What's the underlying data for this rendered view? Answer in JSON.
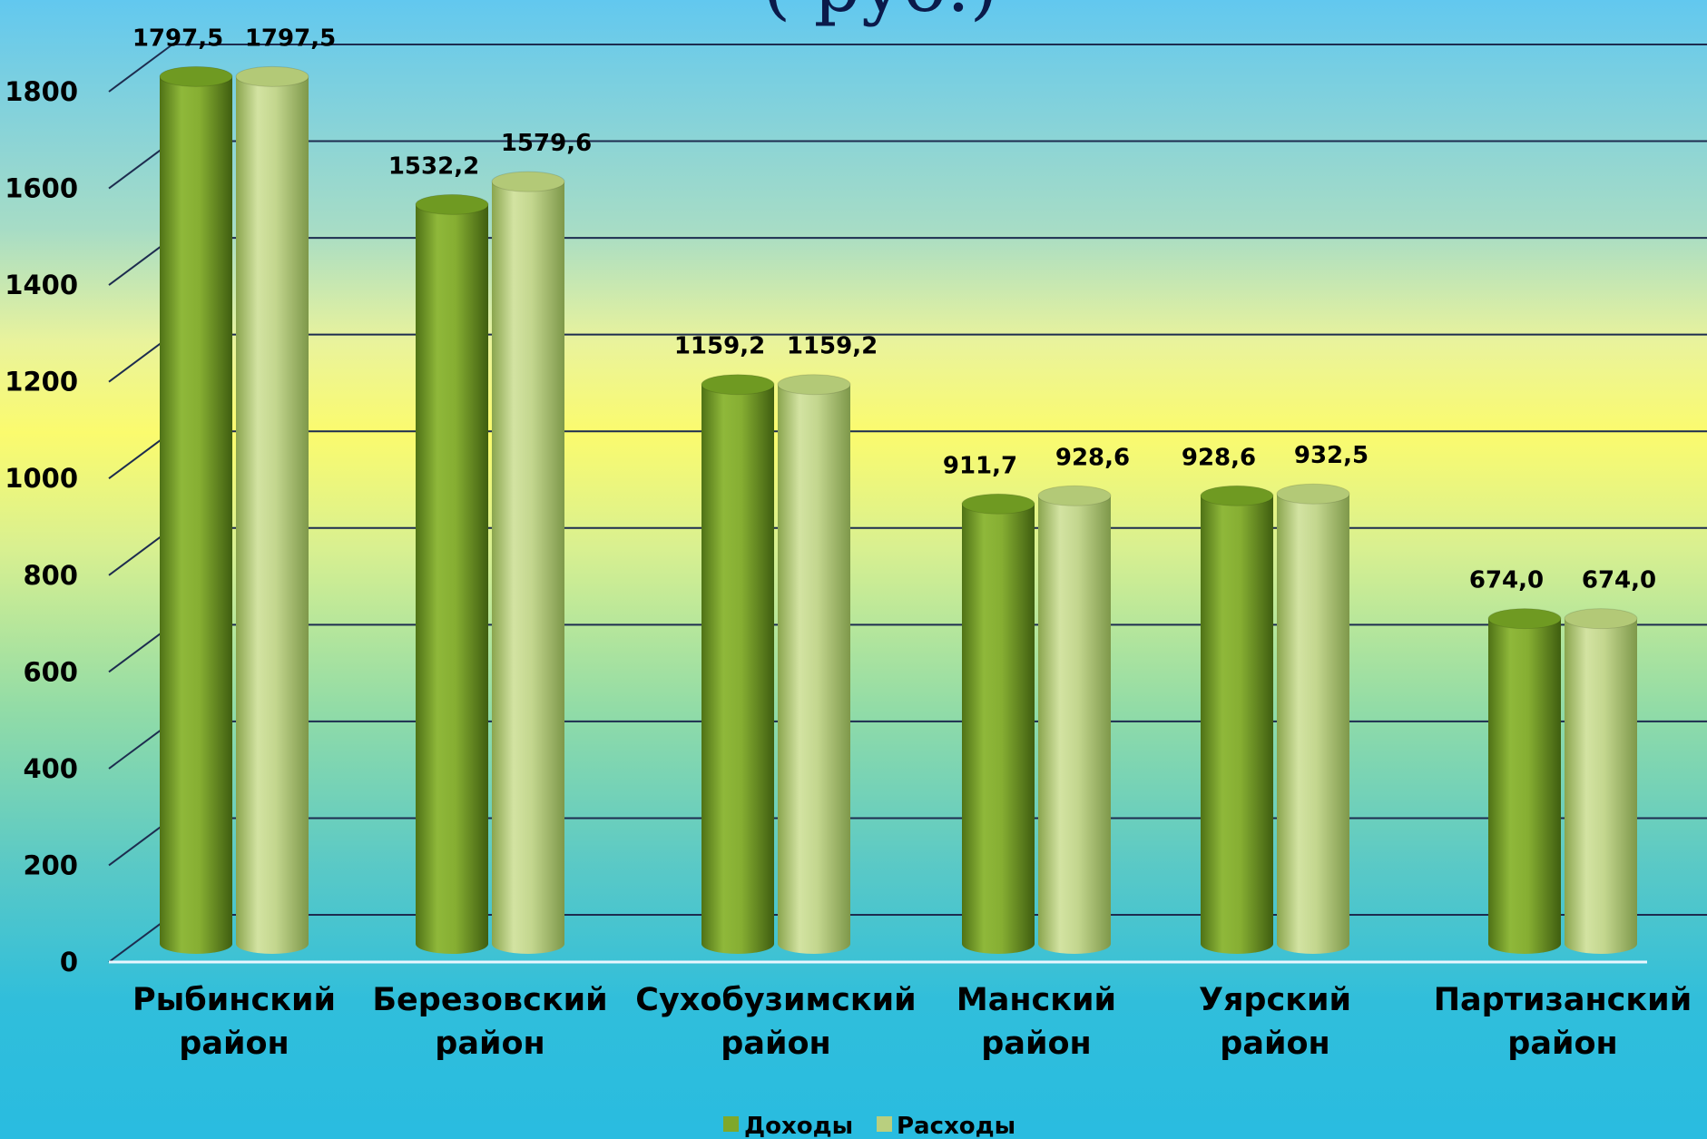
{
  "title_fragment": "(        руб.)",
  "chart_data": {
    "type": "bar",
    "categories": [
      [
        "Рыбинский",
        "район"
      ],
      [
        "Березовский",
        "район"
      ],
      [
        "Сухобузимский",
        "район"
      ],
      [
        "Манский",
        "район"
      ],
      [
        "Уярский",
        "район"
      ],
      [
        "Партизанский",
        "район"
      ]
    ],
    "series": [
      {
        "name": "Доходы",
        "color": "#7fa82a",
        "values": [
          1797.5,
          1532.2,
          1159.2,
          911.7,
          928.6,
          674.0
        ],
        "labels": [
          "1797,5",
          "1532,2",
          "1159,2",
          "911,7",
          "928,6",
          "674,0"
        ]
      },
      {
        "name": "Расходы",
        "color": "#b9cf7f",
        "values": [
          1797.5,
          1579.6,
          1159.2,
          928.6,
          932.5,
          674.0
        ],
        "labels": [
          "1797,5",
          "1579,6",
          "1159,2",
          "928,6",
          "932,5",
          "674,0"
        ]
      }
    ],
    "yticks": [
      "0",
      "200",
      "400",
      "600",
      "800",
      "1000",
      "1200",
      "1400",
      "1600",
      "1800"
    ],
    "ylim": [
      0,
      1800
    ],
    "grid": true,
    "legend": "bottom-center"
  }
}
